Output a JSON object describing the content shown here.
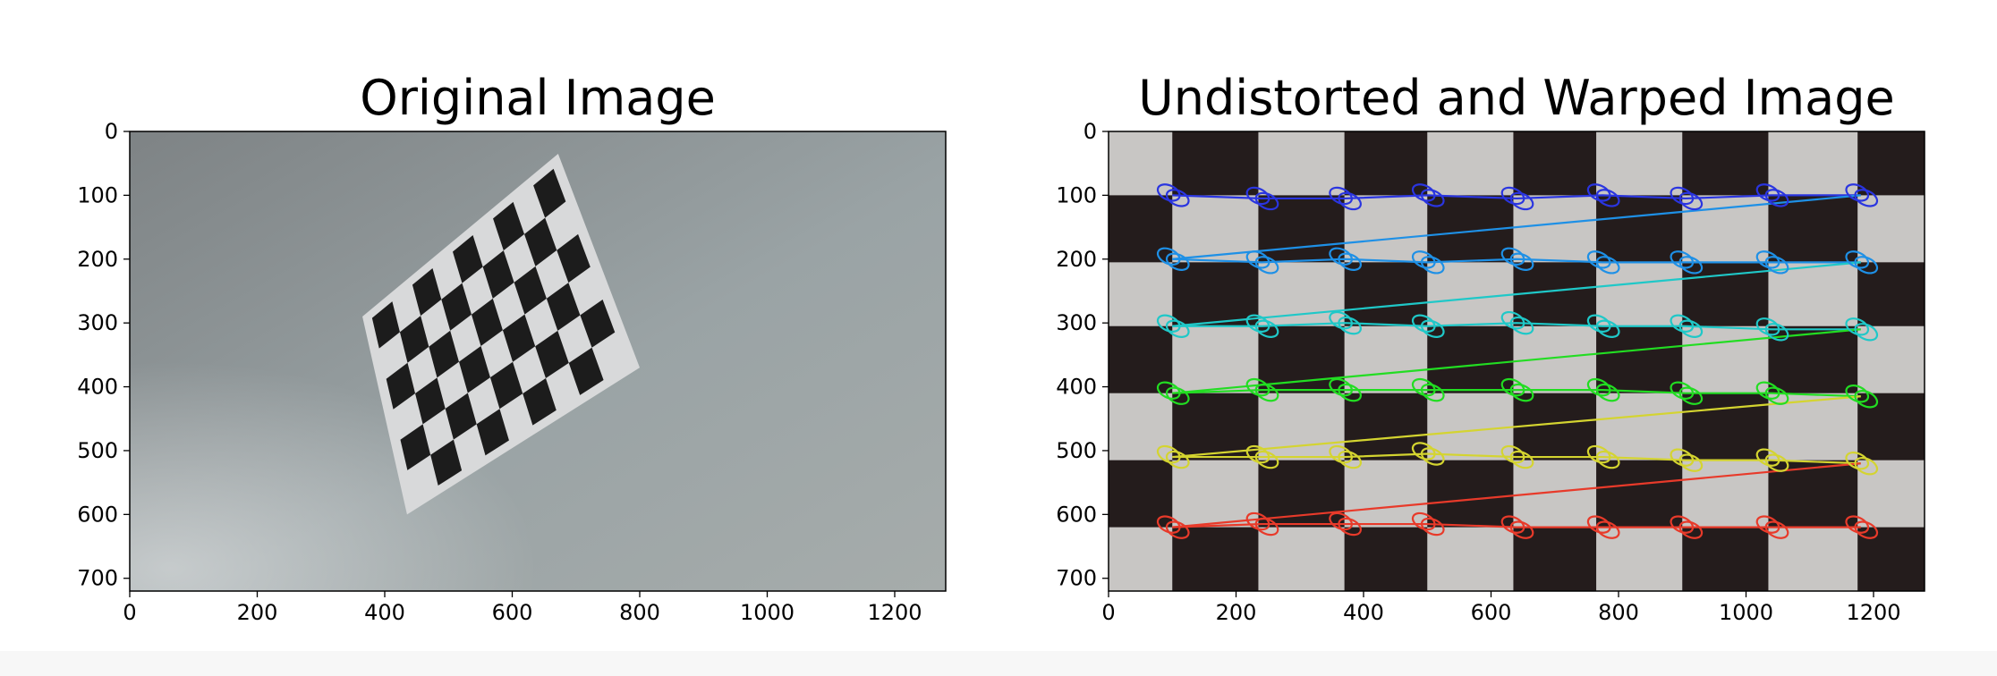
{
  "chart_data": [
    {
      "type": "image",
      "title": "Original Image",
      "xlim": [
        0,
        1280
      ],
      "ylim": [
        720,
        0
      ],
      "xticks": [
        0,
        200,
        400,
        600,
        800,
        1000,
        1200
      ],
      "yticks": [
        0,
        100,
        200,
        300,
        400,
        500,
        600,
        700
      ],
      "background_colors": [
        "#7e8385",
        "#9aa3a5",
        "#a6acab"
      ],
      "checkerboard": {
        "rows": 6,
        "cols": 9,
        "square_color": "#1c1c1c",
        "paper_color": "#d8d9da",
        "corner_top_left": [
          365,
          290
        ],
        "corner_top_right": [
          672,
          35
        ],
        "corner_bottom_right": [
          800,
          370
        ],
        "corner_bottom_left": [
          435,
          600
        ]
      }
    },
    {
      "type": "image",
      "title": "Undistorted and Warped Image",
      "xlim": [
        0,
        1280
      ],
      "ylim": [
        720,
        0
      ],
      "xticks": [
        0,
        200,
        400,
        600,
        800,
        1000,
        1200
      ],
      "yticks": [
        0,
        100,
        200,
        300,
        400,
        500,
        600,
        700
      ],
      "checkerboard": {
        "light_color": "#c8c6c4",
        "dark_color": "#241c1c",
        "column_edges": [
          0,
          100,
          235,
          370,
          500,
          635,
          765,
          900,
          1035,
          1175,
          1280
        ],
        "row_edges": [
          0,
          100,
          205,
          305,
          410,
          515,
          620,
          720
        ]
      },
      "corner_rows": [
        {
          "color": "#2a35e0",
          "points": [
            [
              100,
              100
            ],
            [
              240,
              105
            ],
            [
              370,
              105
            ],
            [
              500,
              100
            ],
            [
              640,
              105
            ],
            [
              775,
              100
            ],
            [
              905,
              105
            ],
            [
              1040,
              100
            ],
            [
              1180,
              100
            ]
          ]
        },
        {
          "color": "#1e90e6",
          "points": [
            [
              100,
              200
            ],
            [
              240,
              205
            ],
            [
              370,
              200
            ],
            [
              500,
              205
            ],
            [
              640,
              200
            ],
            [
              775,
              205
            ],
            [
              905,
              205
            ],
            [
              1040,
              205
            ],
            [
              1180,
              205
            ]
          ]
        },
        {
          "color": "#1fc8c8",
          "points": [
            [
              100,
              305
            ],
            [
              240,
              305
            ],
            [
              370,
              300
            ],
            [
              500,
              305
            ],
            [
              640,
              300
            ],
            [
              775,
              305
            ],
            [
              905,
              305
            ],
            [
              1040,
              310
            ],
            [
              1180,
              310
            ]
          ]
        },
        {
          "color": "#22dd22",
          "points": [
            [
              100,
              410
            ],
            [
              240,
              405
            ],
            [
              370,
              405
            ],
            [
              500,
              405
            ],
            [
              640,
              405
            ],
            [
              775,
              405
            ],
            [
              905,
              410
            ],
            [
              1040,
              410
            ],
            [
              1180,
              415
            ]
          ]
        },
        {
          "color": "#d4d430",
          "points": [
            [
              100,
              510
            ],
            [
              240,
              510
            ],
            [
              370,
              510
            ],
            [
              500,
              505
            ],
            [
              640,
              510
            ],
            [
              775,
              510
            ],
            [
              905,
              515
            ],
            [
              1040,
              515
            ],
            [
              1180,
              520
            ]
          ]
        },
        {
          "color": "#e83a2a",
          "points": [
            [
              100,
              620
            ],
            [
              240,
              615
            ],
            [
              370,
              615
            ],
            [
              500,
              615
            ],
            [
              640,
              620
            ],
            [
              775,
              620
            ],
            [
              905,
              620
            ],
            [
              1040,
              620
            ],
            [
              1180,
              620
            ]
          ]
        }
      ]
    }
  ]
}
